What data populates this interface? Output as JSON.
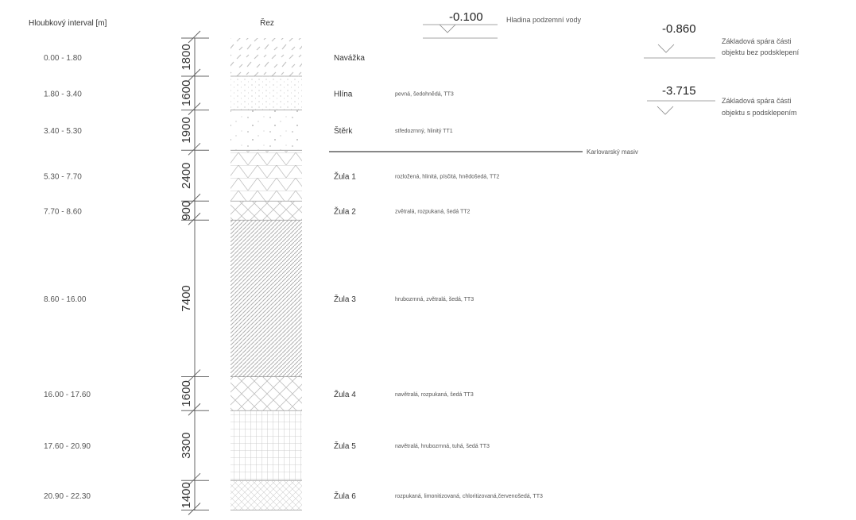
{
  "headers": {
    "depth_interval": "Hloubkový interval [m]",
    "section": "Řez"
  },
  "layers": [
    {
      "depth": "0.00 - 1.80",
      "thickness": "1800",
      "name": "Navážka",
      "description": "",
      "hatch": "fill"
    },
    {
      "depth": "1.80 - 3.40",
      "thickness": "1600",
      "name": "Hlína",
      "description": "pevná, šedohnědá, TT3",
      "hatch": "dots"
    },
    {
      "depth": "3.40 - 5.30",
      "thickness": "1900",
      "name": "Štěrk",
      "description": "středozrnný, hlinitý TT1",
      "hatch": "gravel"
    },
    {
      "depth": "5.30 - 7.70",
      "thickness": "2400",
      "name": "Žula 1",
      "description": "rozložená, hlinitá, písčitá, hnědošedá, TT2",
      "hatch": "triangles"
    },
    {
      "depth": "7.70 - 8.60",
      "thickness": "900",
      "name": "Žula 2",
      "description": "zvětralá, rozpukaná, šedá TT2",
      "hatch": "cross"
    },
    {
      "depth": "8.60 - 16.00",
      "thickness": "7400",
      "name": "Žula 3",
      "description": "hrubozrnná, zvětralá, šedá, TT3",
      "hatch": "diag"
    },
    {
      "depth": "16.00 - 17.60",
      "thickness": "1600",
      "name": "Žula 4",
      "description": "navětralá, rozpukaná, šedá TT3",
      "hatch": "cross"
    },
    {
      "depth": "17.60 - 20.90",
      "thickness": "3300",
      "name": "Žula 5",
      "description": "navětralá, hrubozrnná, tuhá, šedá TT3",
      "hatch": "grid"
    },
    {
      "depth": "20.90 - 22.30",
      "thickness": "1400",
      "name": "Žula 6",
      "description": "rozpukaná, limonitizovaná, chloritizovaná,červenošedá, TT3",
      "hatch": "finecross"
    }
  ],
  "massif_label": "Karlovarský masiv",
  "levels": [
    {
      "value": "-0.100",
      "line1": "Hladina podzemní vody",
      "line2": ""
    },
    {
      "value": "-0.860",
      "line1": "Základová spára části",
      "line2": "objektu bez podsklepení"
    },
    {
      "value": "-3.715",
      "line1": "Základová spára části",
      "line2": "objektu s podsklepením"
    }
  ],
  "colors": {
    "line": "#777777",
    "hatch": "#bdbdbd",
    "text": "#333333"
  }
}
